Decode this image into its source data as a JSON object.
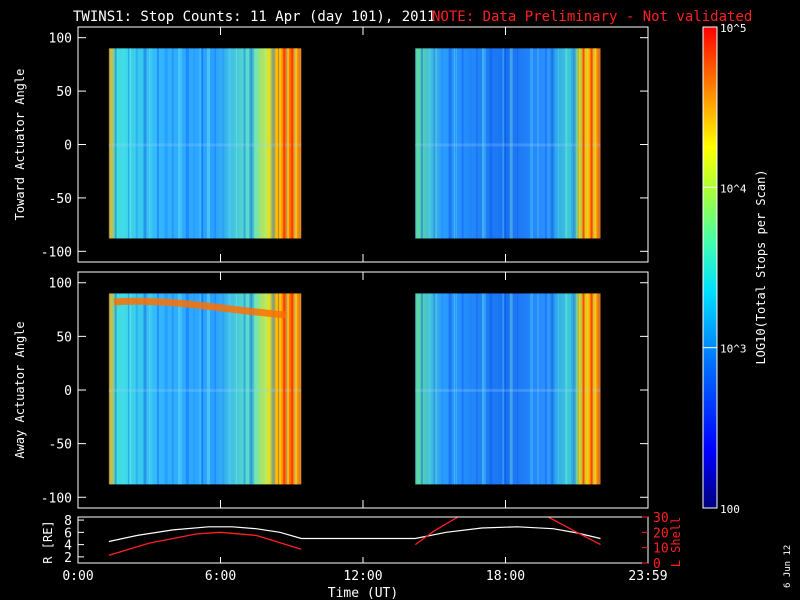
{
  "title": "TWINS1: Stop Counts: 11 Apr (day 101), 2011",
  "note": "NOTE: Data Preliminary - Not validated",
  "date_stamp": "6 Jun 12",
  "colors": {
    "background": "#000000",
    "axes": "#ffffff",
    "note": "#ff2020",
    "lshell": "#ff2020",
    "rline": "#ffffff"
  },
  "chart_data": [
    {
      "type": "heatmap",
      "ylabel": "Toward Actuator Angle",
      "ylim": [
        -110,
        110
      ],
      "yticks": [
        100,
        50,
        0,
        -50,
        -100
      ],
      "xlim": [
        0,
        24
      ],
      "data_ranges": [
        {
          "t_start": 1.3,
          "t_end": 9.4,
          "angle_min": -88,
          "angle_max": 90
        },
        {
          "t_start": 14.2,
          "t_end": 22.0,
          "angle_min": -88,
          "angle_max": 90
        }
      ]
    },
    {
      "type": "heatmap",
      "ylabel": "Away Actuator Angle",
      "ylim": [
        -110,
        110
      ],
      "yticks": [
        100,
        50,
        0,
        -50,
        -100
      ],
      "xlim": [
        0,
        24
      ],
      "data_ranges": [
        {
          "t_start": 1.3,
          "t_end": 9.4,
          "angle_min": -88,
          "angle_max": 90
        },
        {
          "t_start": 14.2,
          "t_end": 22.0,
          "angle_min": -88,
          "angle_max": 90
        }
      ]
    },
    {
      "type": "line",
      "ylabel": "R [RE]",
      "ylabel_right": "L Shell",
      "ylim": [
        1,
        8.5
      ],
      "yticks": [
        8,
        6,
        4,
        2
      ],
      "ylim_right": [
        0,
        30
      ],
      "yticks_right": [
        30,
        20,
        10,
        0
      ],
      "xlabel": "Time (UT)",
      "xticks": [
        "0:00",
        "6:00",
        "12:00",
        "18:00",
        "23:59"
      ],
      "xtick_hours": [
        0,
        6,
        12,
        18,
        24
      ],
      "xlim": [
        0,
        24
      ],
      "series": [
        {
          "axis": "left",
          "x": [
            1.3,
            2.5,
            4.0,
            5.5,
            6.5,
            7.5,
            8.5,
            9.4,
            14.2,
            15.5,
            17.0,
            18.5,
            20.0,
            21.0,
            22.0
          ],
          "y": [
            4.5,
            5.5,
            6.4,
            6.9,
            6.9,
            6.6,
            6.0,
            5.0,
            5.0,
            6.0,
            6.7,
            6.9,
            6.6,
            5.9,
            5.0
          ]
        },
        {
          "axis": "right",
          "segments": [
            {
              "x": [
                1.3,
                3.0,
                5.0,
                6.0,
                7.5,
                9.4
              ],
              "y": [
                5,
                13,
                19,
                20,
                18,
                9
              ]
            },
            {
              "x": [
                14.2,
                15.0,
                16.0
              ],
              "y": [
                12,
                21,
                30
              ]
            },
            {
              "x": [
                19.8,
                21.0,
                22.0
              ],
              "y": [
                30,
                20,
                12
              ]
            }
          ]
        }
      ]
    }
  ],
  "colorbar": {
    "label": "LOG10(Total Stops per Scan)",
    "ticks": [
      "10^5",
      "10^4",
      "10^3",
      "100"
    ],
    "values": [
      100000,
      10000,
      1000,
      100
    ]
  }
}
